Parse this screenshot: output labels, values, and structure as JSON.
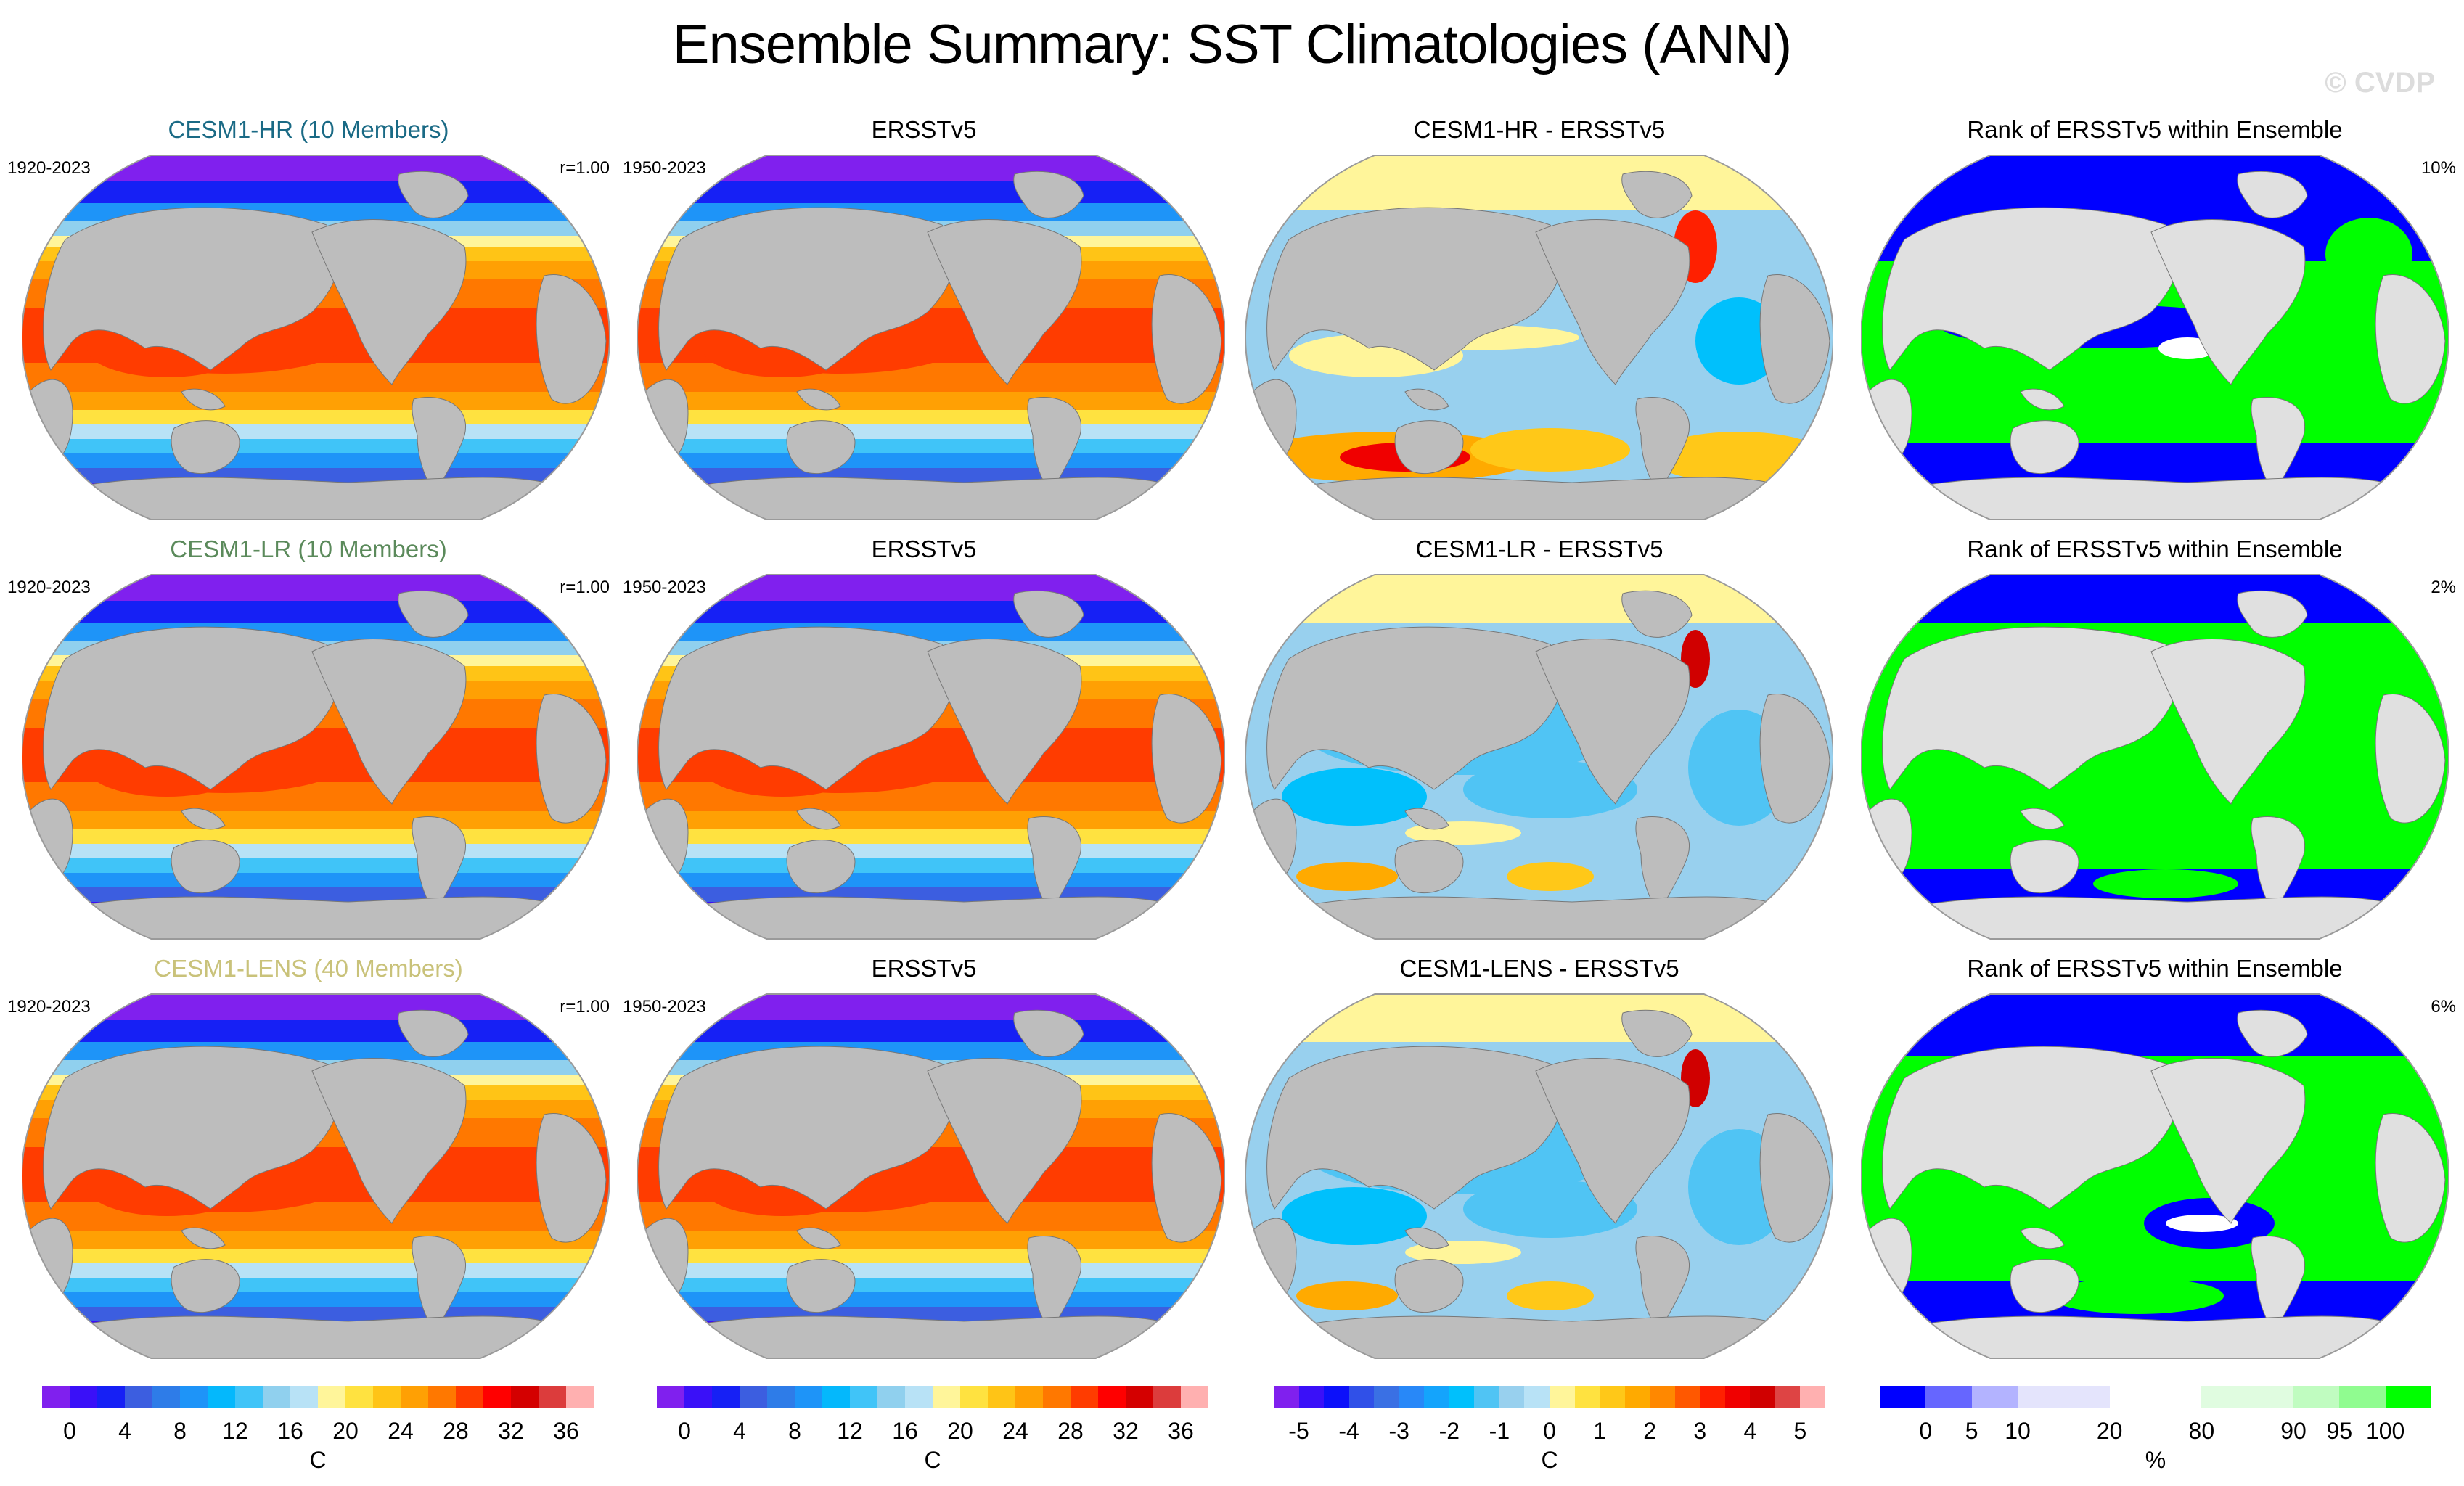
{
  "figure": {
    "title": "Ensemble Summary: SST Climatologies (ANN)",
    "watermark": "© CVDP"
  },
  "chart_data": {
    "type": "heatmap",
    "title": "Ensemble Summary: SST Climatologies (ANN)",
    "projection": "Robinson-like global map (Pacific-centered)",
    "rows": [
      {
        "model": "CESM1-HR (10 Members)",
        "model_color": "#1a6a85",
        "panels": [
          {
            "title": "CESM1-HR (10 Members)",
            "left_label": "1920-2023",
            "right_label": "r=1.00",
            "kind": "sst"
          },
          {
            "title": "ERSSTv5",
            "left_label": "1950-2023",
            "right_label": "",
            "kind": "sst"
          },
          {
            "title": "CESM1-HR - ERSSTv5",
            "left_label": "",
            "right_label": "",
            "kind": "diff"
          },
          {
            "title": "Rank of ERSSTv5 within Ensemble",
            "left_label": "",
            "right_label": "10%",
            "kind": "rank"
          }
        ]
      },
      {
        "model": "CESM1-LR (10 Members)",
        "model_color": "#5b8a5b",
        "panels": [
          {
            "title": "CESM1-LR (10 Members)",
            "left_label": "1920-2023",
            "right_label": "r=1.00",
            "kind": "sst"
          },
          {
            "title": "ERSSTv5",
            "left_label": "1950-2023",
            "right_label": "",
            "kind": "sst"
          },
          {
            "title": "CESM1-LR - ERSSTv5",
            "left_label": "",
            "right_label": "",
            "kind": "diff2"
          },
          {
            "title": "Rank of ERSSTv5 within Ensemble",
            "left_label": "",
            "right_label": "2%",
            "kind": "rank2"
          }
        ]
      },
      {
        "model": "CESM1-LENS (40 Members)",
        "model_color": "#c9c27a",
        "panels": [
          {
            "title": "CESM1-LENS (40 Members)",
            "left_label": "1920-2023",
            "right_label": "r=1.00",
            "kind": "sst"
          },
          {
            "title": "ERSSTv5",
            "left_label": "1950-2023",
            "right_label": "",
            "kind": "sst"
          },
          {
            "title": "CESM1-LENS - ERSSTv5",
            "left_label": "",
            "right_label": "",
            "kind": "diff3"
          },
          {
            "title": "Rank of ERSSTv5 within Ensemble",
            "left_label": "",
            "right_label": "6%",
            "kind": "rank3"
          }
        ]
      }
    ],
    "colorbars": [
      {
        "name": "sst-climatology",
        "unit": "C",
        "ticks": [
          "0",
          "4",
          "8",
          "12",
          "16",
          "20",
          "24",
          "28",
          "32",
          "36"
        ],
        "tick_levels": [
          0,
          4,
          8,
          12,
          16,
          20,
          24,
          28,
          32,
          36
        ],
        "range": [
          -2,
          38
        ],
        "colors": [
          "#8020ee",
          "#3a10f8",
          "#1620f5",
          "#3c5ee0",
          "#2e7ce8",
          "#1e94f8",
          "#04b8fc",
          "#40c4f8",
          "#90d0ee",
          "#b8e2f6",
          "#fff59a",
          "#ffe240",
          "#ffc416",
          "#ffa004",
          "#ff7800",
          "#ff3c00",
          "#ff0000",
          "#d40000",
          "#dc3c3c",
          "#ffb0b0"
        ]
      },
      {
        "name": "sst-climatology-obs",
        "unit": "C",
        "ticks": [
          "0",
          "4",
          "8",
          "12",
          "16",
          "20",
          "24",
          "28",
          "32",
          "36"
        ],
        "tick_levels": [
          0,
          4,
          8,
          12,
          16,
          20,
          24,
          28,
          32,
          36
        ],
        "range": [
          -2,
          38
        ],
        "colors": [
          "#8020ee",
          "#3a10f8",
          "#1620f5",
          "#3c5ee0",
          "#2e7ce8",
          "#1e94f8",
          "#04b8fc",
          "#40c4f8",
          "#90d0ee",
          "#b8e2f6",
          "#fff59a",
          "#ffe240",
          "#ffc416",
          "#ffa004",
          "#ff7800",
          "#ff3c00",
          "#ff0000",
          "#d40000",
          "#dc3c3c",
          "#ffb0b0"
        ]
      },
      {
        "name": "sst-difference",
        "unit": "C",
        "ticks": [
          "-5",
          "-4",
          "-3",
          "-2",
          "-1",
          "0",
          "1",
          "2",
          "3",
          "4",
          "5"
        ],
        "tick_levels": [
          -5,
          -4,
          -3,
          -2,
          -1,
          0,
          1,
          2,
          3,
          4,
          5
        ],
        "range": [
          -5.5,
          5.5
        ],
        "colors": [
          "#8020ee",
          "#3a10f8",
          "#0c10fa",
          "#3050e8",
          "#3a70e4",
          "#2888f8",
          "#14a4fc",
          "#00c0fc",
          "#50c4f4",
          "#98d0ee",
          "#b8e2f6",
          "#fff59a",
          "#ffe240",
          "#ffc818",
          "#ffaa00",
          "#ff8800",
          "#ff5800",
          "#ff2000",
          "#f00000",
          "#d00000",
          "#de4444",
          "#ffb0b0"
        ]
      },
      {
        "name": "rank-percent",
        "unit": "%",
        "ticks": [
          "0",
          "5",
          "10",
          "20",
          "80",
          "90",
          "95",
          "100"
        ],
        "tick_levels": [
          0,
          5,
          10,
          20,
          80,
          90,
          95,
          100
        ],
        "colors": [
          "#0000ff",
          "#6666ff",
          "#b3b3ff",
          "#e4e4fc",
          "#ffffff",
          "#e0fce0",
          "#c0fcc0",
          "#90fc90",
          "#00ff00"
        ],
        "box_widths": [
          1,
          1,
          1,
          2,
          2,
          2,
          1,
          1,
          1
        ]
      }
    ]
  }
}
